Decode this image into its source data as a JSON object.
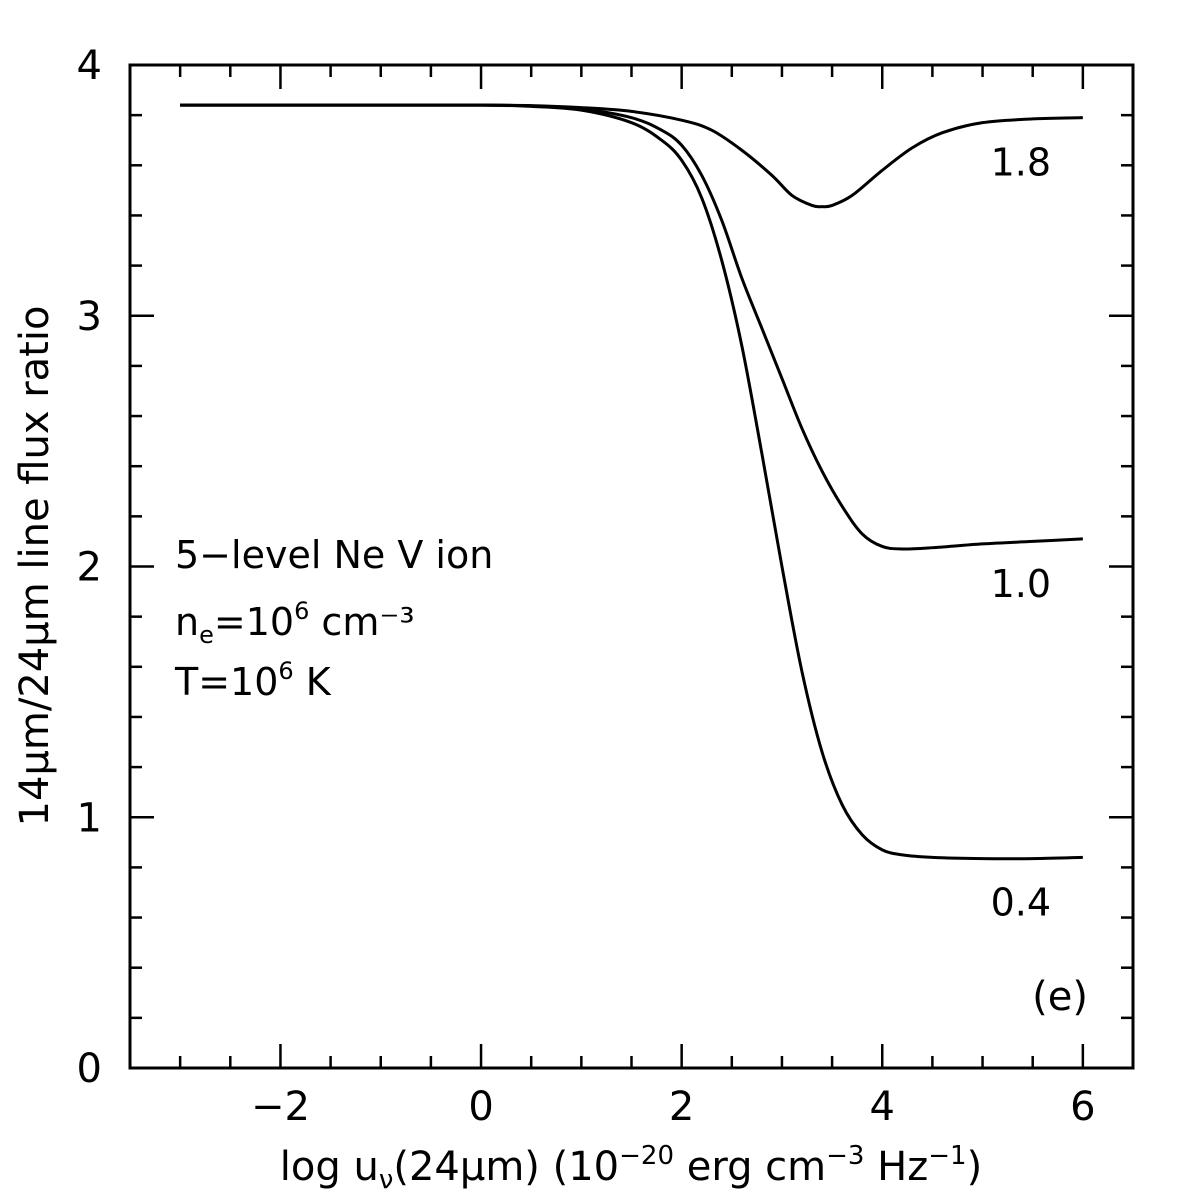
{
  "chart_data": {
    "type": "line",
    "xlabel": "log u",
    "xlabel_sub": "ν",
    "xlabel_mid": "(24μm) (10",
    "xlabel_exp": "−20",
    "xlabel_units_1": " erg cm",
    "xlabel_exp2": "−3",
    "xlabel_units_2": " Hz",
    "xlabel_exp3": "−1",
    "xlabel_close": ")",
    "ylabel": "14μm/24μm line flux ratio",
    "xlim": [
      -3.5,
      6.5
    ],
    "ylim": [
      0,
      4
    ],
    "xticks": [
      -2,
      0,
      2,
      4,
      6
    ],
    "xtick_labels": [
      "−2",
      "0",
      "2",
      "4",
      "6"
    ],
    "yticks": [
      0,
      1,
      2,
      3,
      4
    ],
    "ytick_labels": [
      "0",
      "1",
      "2",
      "3",
      "4"
    ],
    "x_minor_step": 0.5,
    "y_minor_step": 0.2,
    "grid": false,
    "series": [
      {
        "name": "1.8",
        "x": [
          -3,
          -2,
          -1,
          0,
          0.5,
          1,
          1.5,
          2,
          2.3,
          2.6,
          2.9,
          3.1,
          3.3,
          3.4,
          3.5,
          3.7,
          4,
          4.3,
          4.6,
          5,
          5.5,
          6
        ],
        "y": [
          3.84,
          3.84,
          3.84,
          3.84,
          3.838,
          3.83,
          3.815,
          3.78,
          3.74,
          3.66,
          3.56,
          3.48,
          3.44,
          3.435,
          3.44,
          3.48,
          3.58,
          3.67,
          3.73,
          3.77,
          3.785,
          3.79
        ]
      },
      {
        "name": "1.0",
        "x": [
          -3,
          -2,
          -1,
          0,
          0.5,
          1,
          1.5,
          1.8,
          2,
          2.2,
          2.4,
          2.6,
          2.8,
          3,
          3.2,
          3.4,
          3.6,
          3.8,
          4,
          4.2,
          4.5,
          5,
          5.5,
          6
        ],
        "y": [
          3.84,
          3.84,
          3.84,
          3.84,
          3.837,
          3.825,
          3.79,
          3.74,
          3.68,
          3.56,
          3.38,
          3.15,
          2.95,
          2.75,
          2.55,
          2.38,
          2.24,
          2.13,
          2.08,
          2.07,
          2.075,
          2.09,
          2.1,
          2.11
        ]
      },
      {
        "name": "0.4",
        "x": [
          -3,
          -2,
          -1,
          0,
          0.5,
          1,
          1.5,
          1.8,
          2,
          2.2,
          2.4,
          2.6,
          2.8,
          3,
          3.2,
          3.4,
          3.6,
          3.8,
          4,
          4.2,
          4.5,
          5,
          5.5,
          6
        ],
        "y": [
          3.84,
          3.84,
          3.84,
          3.84,
          3.835,
          3.82,
          3.77,
          3.7,
          3.62,
          3.47,
          3.22,
          2.88,
          2.45,
          2.0,
          1.58,
          1.26,
          1.05,
          0.93,
          0.87,
          0.85,
          0.84,
          0.835,
          0.835,
          0.84
        ]
      }
    ],
    "annotation_lines": [
      {
        "main": "5−level Ne V ion",
        "sub": "",
        "rest": "",
        "sup": "",
        "tail": ""
      },
      {
        "main": "n",
        "sub": "e",
        "rest": "=10",
        "sup": "6",
        "tail": " cm⁻³"
      },
      {
        "main": "T=10",
        "sub": "",
        "rest": "",
        "sup": "6",
        "tail": " K"
      }
    ],
    "panel_label": "(e)",
    "stroke_color": "#000000"
  }
}
